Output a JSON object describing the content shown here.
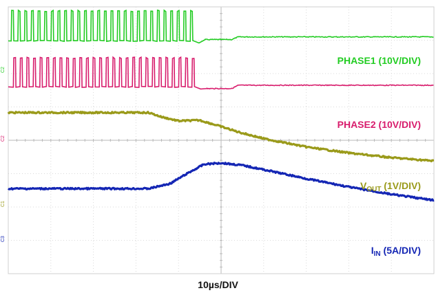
{
  "chart_data": {
    "type": "line",
    "x_divisions": 10,
    "y_divisions": 8,
    "grid": true,
    "xlabel": "10µs/DIV",
    "series": [
      {
        "name": "PHASE1 (10V/DIV)",
        "label_main": "PHASE1 (10V/DIV)",
        "label_sub": "",
        "label_tail": "",
        "marker": "C2",
        "color": "#22cc22",
        "kind": "switching",
        "baseline_div": 2.98,
        "pulse_div": 3.88,
        "pulse_count": 28,
        "pulse_start_div": 0.07,
        "pulse_end_div": 4.43,
        "settled_div": 3.02,
        "final_div": 3.1
      },
      {
        "name": "PHASE2 (10V/DIV)",
        "label_main": "PHASE2 (10V/DIV)",
        "label_sub": "",
        "label_tail": "",
        "marker": "C2",
        "color": "#d81c6c",
        "kind": "switching",
        "baseline_div": 1.6,
        "pulse_div": 2.47,
        "pulse_count": 28,
        "pulse_start_div": 0.12,
        "pulse_end_div": 4.47,
        "settled_div": 1.55,
        "final_div": 1.65
      },
      {
        "name": "VOUT (1V/DIV)",
        "label_main": "V",
        "label_sub": "OUT",
        "label_tail": " (1V/DIV)",
        "marker": "C1",
        "color": "#9a9a1a",
        "kind": "analog",
        "x": [
          0,
          3.3,
          3.6,
          4.0,
          4.5,
          4.9,
          5.4,
          6.0,
          7.0,
          8.0,
          9.0,
          10.0
        ],
        "y": [
          0.83,
          0.83,
          0.7,
          0.58,
          0.6,
          0.45,
          0.25,
          0.05,
          -0.2,
          -0.38,
          -0.52,
          -0.62
        ]
      },
      {
        "name": "IIN (5A/DIV)",
        "label_main": "I",
        "label_sub": "IN",
        "label_tail": " (5A/DIV)",
        "marker": "C3",
        "color": "#1426b4",
        "kind": "analog",
        "x": [
          0,
          3.3,
          3.8,
          4.2,
          4.6,
          5.0,
          5.5,
          6.0,
          7.0,
          8.0,
          9.0,
          10.0
        ],
        "y": [
          -1.45,
          -1.45,
          -1.3,
          -1.0,
          -0.72,
          -0.68,
          -0.75,
          -0.88,
          -1.15,
          -1.4,
          -1.62,
          -1.8
        ]
      }
    ]
  }
}
